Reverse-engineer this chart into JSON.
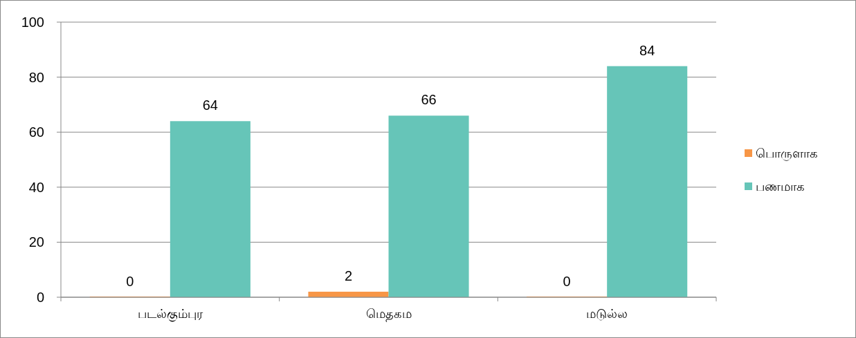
{
  "chart_data": {
    "type": "bar",
    "categories": [
      "படல்கும்புர",
      "மெதகம",
      "மடுல்ல"
    ],
    "series": [
      {
        "name": "பொருளாக",
        "color": "#f79646",
        "values": [
          0,
          2,
          0
        ]
      },
      {
        "name": "பணமாக",
        "color": "#66c5b8",
        "values": [
          64,
          66,
          84
        ]
      }
    ],
    "ylim": [
      0,
      100
    ],
    "yticks": [
      0,
      20,
      40,
      60,
      80,
      100
    ],
    "grid": "y",
    "legend": "right",
    "data_labels": true
  }
}
